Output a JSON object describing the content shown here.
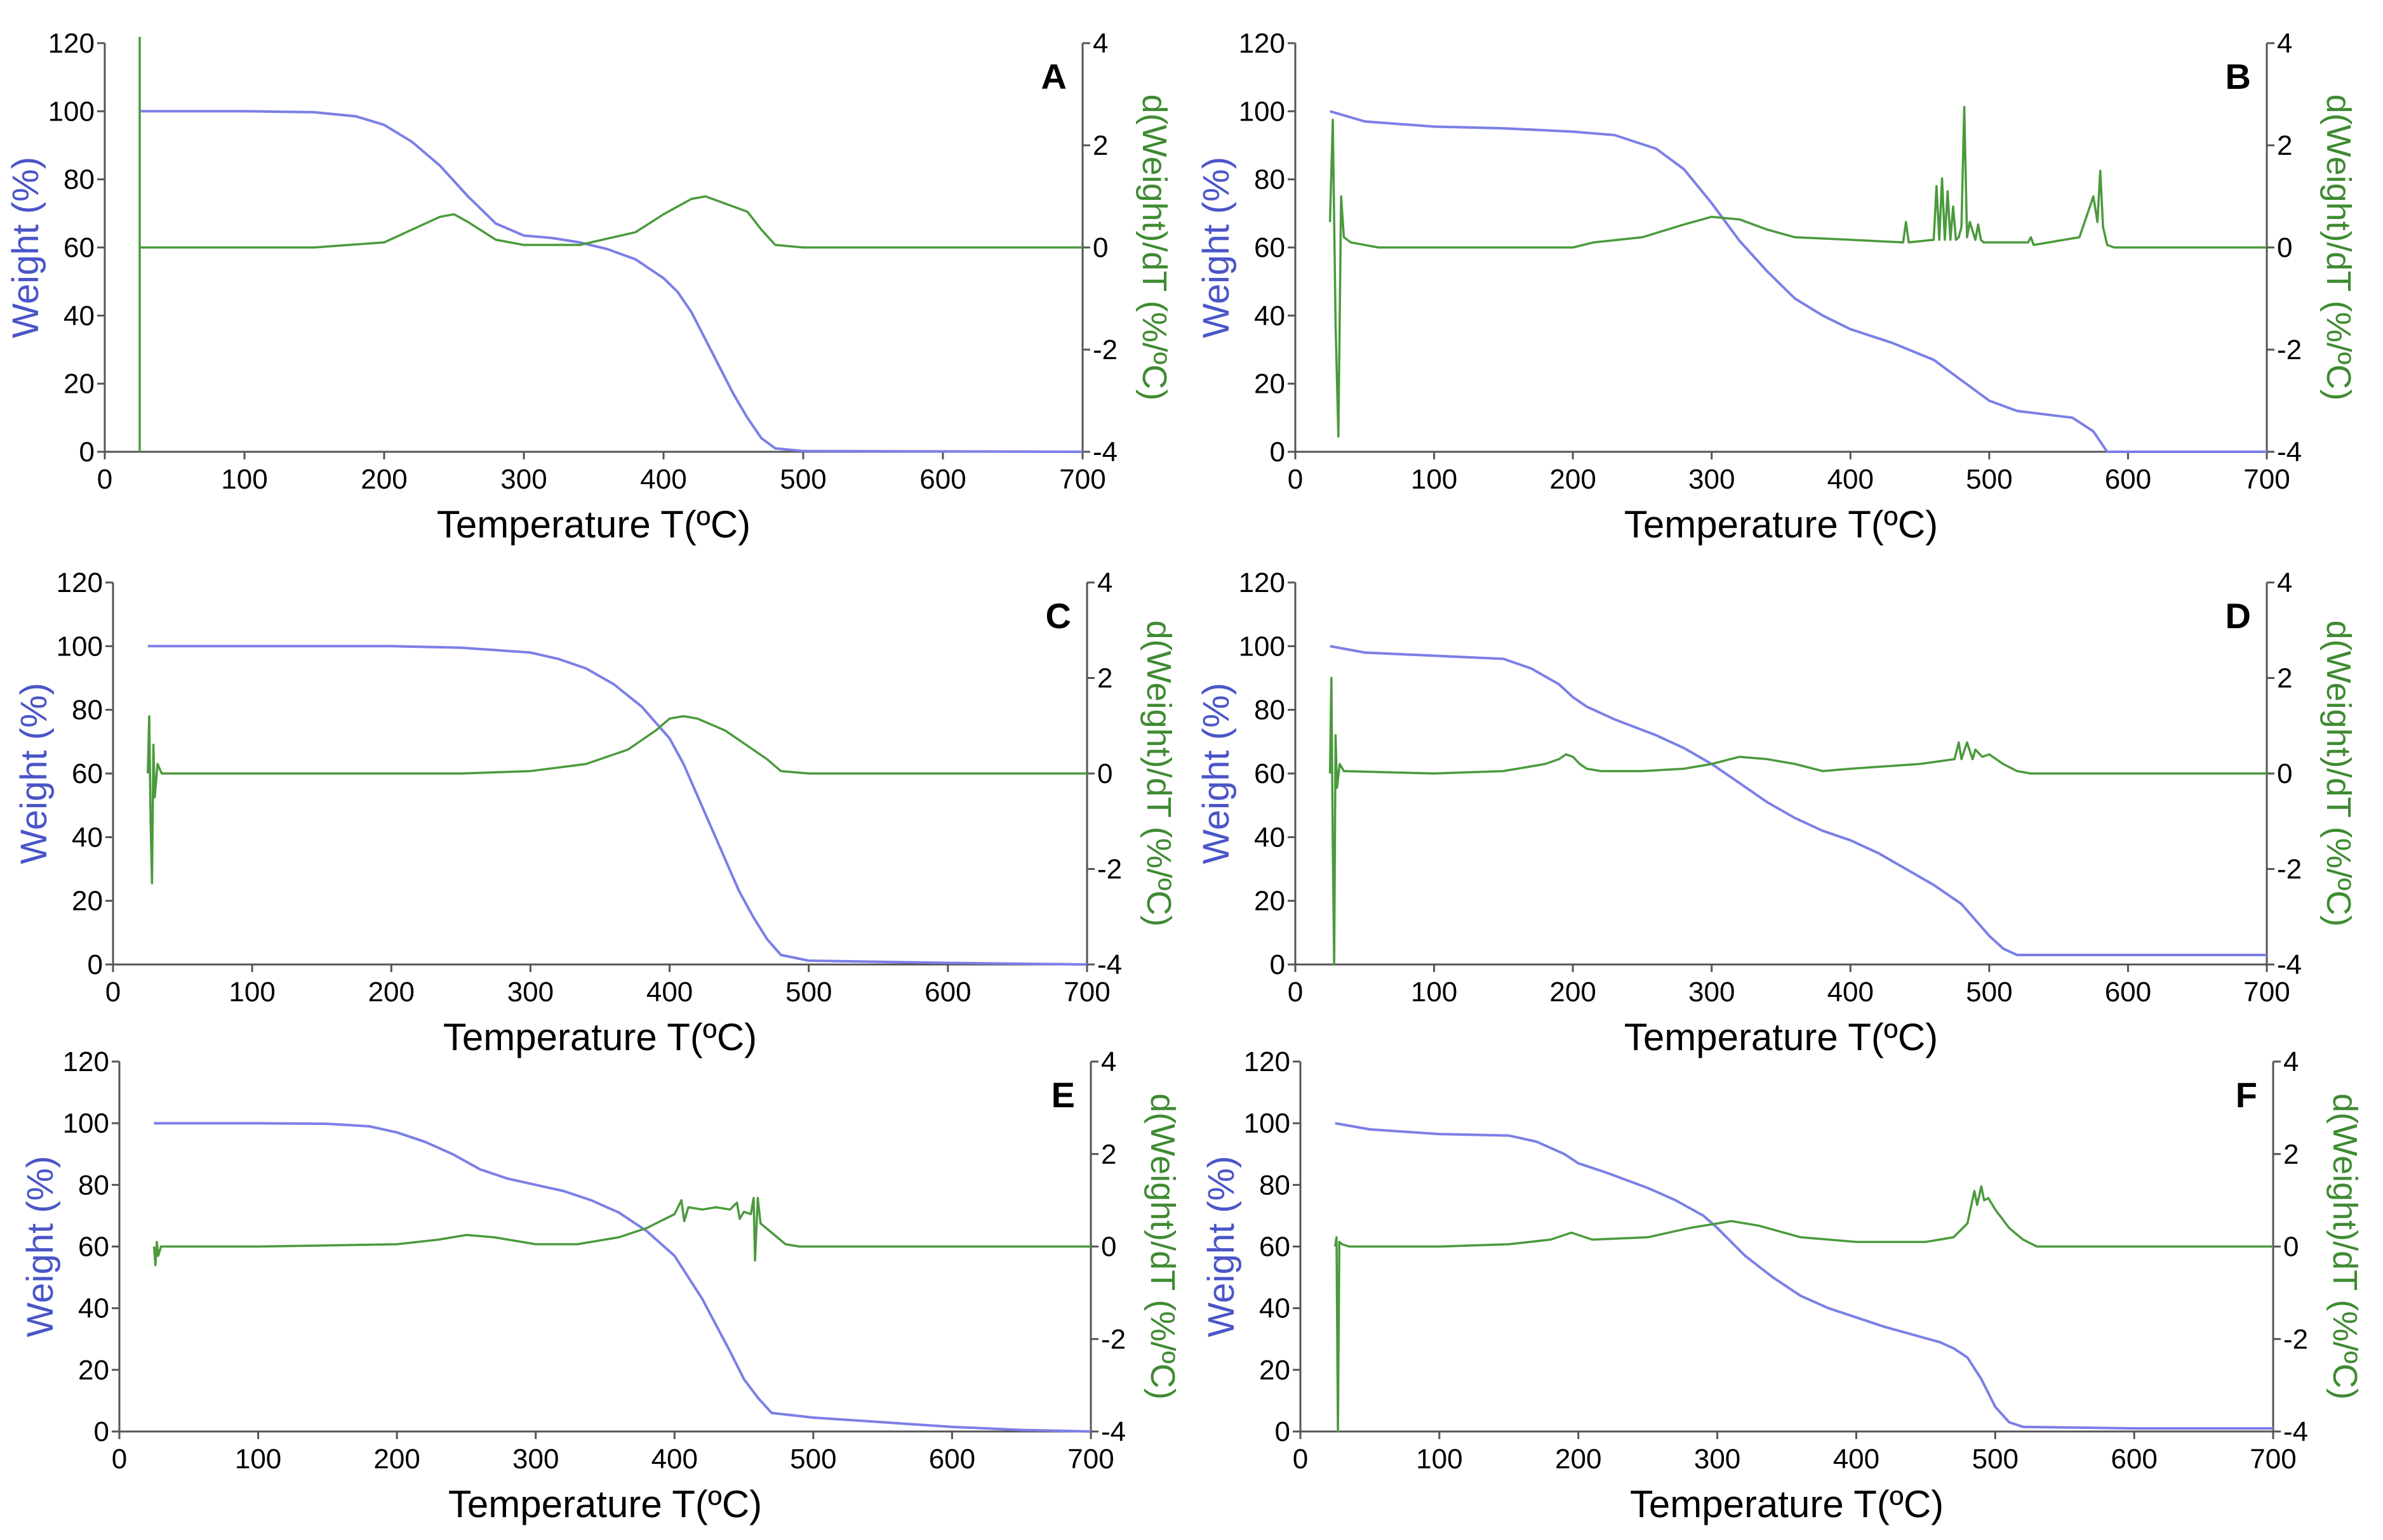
{
  "colors": {
    "weight": "#7b7fe6",
    "derivative": "#4a9a3c",
    "axis": "#555555",
    "weight_label": "#4a55c7",
    "derivative_label": "#3f8a32"
  },
  "chart_data": [
    {
      "type": "line",
      "panel": "A",
      "xlabel": "Temperature T(ºC)",
      "ylabel_left": "Weight (%)",
      "ylabel_right": "d(Weight)/dT (%/ºC)",
      "xlim": [
        0,
        700
      ],
      "ylim_left": [
        0,
        120
      ],
      "ylim_right": [
        -4,
        4
      ],
      "x_ticks": [
        0,
        100,
        200,
        300,
        400,
        500,
        600,
        700
      ],
      "y_left_ticks": [
        0,
        20,
        40,
        60,
        80,
        100,
        120
      ],
      "y_right_ticks": [
        -4,
        -2,
        0,
        2,
        4
      ],
      "series": [
        {
          "name": "Weight",
          "axis": "left",
          "x": [
            25,
            100,
            150,
            180,
            200,
            220,
            240,
            260,
            280,
            300,
            320,
            340,
            360,
            380,
            400,
            410,
            420,
            430,
            440,
            450,
            460,
            470,
            480,
            500,
            700
          ],
          "y": [
            100,
            100,
            99.7,
            98.5,
            96,
            91,
            84,
            75,
            67,
            63.5,
            62.8,
            61.5,
            59.5,
            56.5,
            51,
            47,
            41,
            33,
            25,
            17,
            10,
            4,
            1,
            0.2,
            0
          ]
        },
        {
          "name": "d(Weight)/dT",
          "axis": "right",
          "x": [
            25,
            150,
            200,
            220,
            240,
            250,
            260,
            280,
            300,
            340,
            380,
            400,
            420,
            430,
            440,
            460,
            470,
            480,
            500,
            700
          ],
          "y": [
            0,
            0,
            0.1,
            0.35,
            0.6,
            0.65,
            0.5,
            0.15,
            0.05,
            0.05,
            0.3,
            0.65,
            0.95,
            1.0,
            0.9,
            0.7,
            0.35,
            0.05,
            0,
            0
          ]
        }
      ]
    },
    {
      "type": "line",
      "panel": "B",
      "xlabel": "Temperature T(ºC)",
      "ylabel_left": "Weight (%)",
      "ylabel_right": "d(Weight)/dT (%/ºC)",
      "xlim": [
        0,
        700
      ],
      "ylim_left": [
        0,
        120
      ],
      "ylim_right": [
        -4,
        4
      ],
      "x_ticks": [
        0,
        100,
        200,
        300,
        400,
        500,
        600,
        700
      ],
      "y_left_ticks": [
        0,
        20,
        40,
        60,
        80,
        100,
        120
      ],
      "y_right_ticks": [
        -4,
        -2,
        0,
        2,
        4
      ],
      "series": [
        {
          "name": "Weight",
          "axis": "left",
          "x": [
            25,
            50,
            100,
            150,
            200,
            230,
            260,
            280,
            300,
            320,
            340,
            360,
            380,
            400,
            430,
            460,
            480,
            500,
            520,
            560,
            575,
            585,
            700
          ],
          "y": [
            100,
            97,
            95.5,
            95,
            94,
            93,
            89,
            83,
            73,
            62,
            53,
            45,
            40,
            36,
            32,
            27,
            21,
            15,
            12,
            10,
            6,
            0,
            0
          ]
        },
        {
          "name": "d(Weight)/dT",
          "axis": "right",
          "x": [
            25,
            27,
            29,
            31,
            33,
            35,
            40,
            60,
            200,
            215,
            250,
            280,
            300,
            320,
            340,
            360,
            400,
            438,
            440,
            442,
            460,
            462,
            464,
            466,
            468,
            470,
            472,
            474,
            476,
            478,
            480,
            482,
            484,
            486,
            490,
            492,
            494,
            496,
            500,
            528,
            530,
            532,
            565,
            570,
            575,
            578,
            580,
            582,
            585,
            590,
            700
          ],
          "y": [
            0.5,
            2.5,
            -1.5,
            -3.7,
            1,
            0.2,
            0.1,
            0,
            0,
            0.1,
            0.2,
            0.45,
            0.6,
            0.55,
            0.35,
            0.2,
            0.15,
            0.1,
            0.5,
            0.1,
            0.15,
            1.2,
            0.15,
            1.35,
            0.15,
            1.1,
            0.15,
            0.8,
            0.15,
            0.2,
            0.4,
            2.75,
            0.2,
            0.5,
            0.15,
            0.45,
            0.15,
            0.1,
            0.1,
            0.1,
            0.2,
            0.05,
            0.2,
            0.6,
            1.0,
            0.5,
            1.5,
            0.4,
            0.05,
            0,
            0
          ]
        }
      ]
    },
    {
      "type": "line",
      "panel": "C",
      "xlabel": "Temperature T(ºC)",
      "ylabel_left": "Weight (%)",
      "ylabel_right": "d(Weight)/dT (%/ºC)",
      "xlim": [
        0,
        700
      ],
      "ylim_left": [
        0,
        120
      ],
      "ylim_right": [
        -4,
        4
      ],
      "x_ticks": [
        0,
        100,
        200,
        300,
        400,
        500,
        600,
        700
      ],
      "y_left_ticks": [
        0,
        20,
        40,
        60,
        80,
        100,
        120
      ],
      "y_right_ticks": [
        -4,
        -2,
        0,
        2,
        4
      ],
      "series": [
        {
          "name": "Weight",
          "axis": "left",
          "x": [
            25,
            100,
            200,
            250,
            300,
            320,
            340,
            360,
            380,
            400,
            410,
            420,
            430,
            440,
            450,
            460,
            470,
            480,
            500,
            600,
            700
          ],
          "y": [
            100,
            100,
            100,
            99.5,
            98,
            96,
            93,
            88,
            81,
            71,
            63,
            53,
            43,
            33,
            23,
            15,
            8,
            3,
            1.2,
            0.5,
            0
          ]
        },
        {
          "name": "d(Weight)/dT",
          "axis": "right",
          "x": [
            25,
            26,
            27,
            28,
            29,
            30,
            32,
            35,
            100,
            250,
            300,
            340,
            370,
            390,
            400,
            410,
            420,
            440,
            460,
            470,
            480,
            500,
            700
          ],
          "y": [
            0,
            1.2,
            -1.0,
            -2.3,
            0.6,
            -0.5,
            0.2,
            0,
            0,
            0,
            0.05,
            0.2,
            0.5,
            0.9,
            1.15,
            1.2,
            1.15,
            0.9,
            0.5,
            0.3,
            0.05,
            0,
            0
          ]
        }
      ]
    },
    {
      "type": "line",
      "panel": "D",
      "xlabel": "Temperature T(ºC)",
      "ylabel_left": "Weight (%)",
      "ylabel_right": "d(Weight)/dT (%/ºC)",
      "xlim": [
        0,
        700
      ],
      "ylim_left": [
        0,
        120
      ],
      "ylim_right": [
        -4,
        4
      ],
      "x_ticks": [
        0,
        100,
        200,
        300,
        400,
        500,
        600,
        700
      ],
      "y_left_ticks": [
        0,
        20,
        40,
        60,
        80,
        100,
        120
      ],
      "y_right_ticks": [
        -4,
        -2,
        0,
        2,
        4
      ],
      "series": [
        {
          "name": "Weight",
          "axis": "left",
          "x": [
            25,
            50,
            100,
            150,
            170,
            190,
            200,
            210,
            230,
            260,
            280,
            300,
            320,
            340,
            360,
            380,
            400,
            420,
            440,
            460,
            480,
            490,
            500,
            510,
            520,
            600,
            700
          ],
          "y": [
            100,
            98,
            97,
            96,
            93,
            88,
            84,
            81,
            77,
            72,
            68,
            63,
            57,
            51,
            46,
            42,
            39,
            35,
            30,
            25,
            19,
            14,
            9,
            5,
            3,
            3,
            3
          ]
        },
        {
          "name": "d(Weight)/dT",
          "axis": "right",
          "x": [
            25,
            26,
            27,
            28,
            29,
            30,
            32,
            35,
            100,
            150,
            180,
            190,
            195,
            200,
            205,
            210,
            220,
            250,
            280,
            300,
            320,
            340,
            360,
            380,
            400,
            450,
            475,
            478,
            480,
            484,
            488,
            490,
            495,
            500,
            505,
            510,
            520,
            530,
            700
          ],
          "y": [
            0,
            2,
            -1.5,
            -4,
            0.8,
            -0.3,
            0.2,
            0.05,
            0,
            0.05,
            0.2,
            0.3,
            0.4,
            0.35,
            0.2,
            0.1,
            0.05,
            0.05,
            0.1,
            0.2,
            0.35,
            0.3,
            0.2,
            0.05,
            0.1,
            0.2,
            0.3,
            0.65,
            0.3,
            0.65,
            0.3,
            0.5,
            0.35,
            0.4,
            0.3,
            0.2,
            0.05,
            0,
            0
          ]
        }
      ]
    },
    {
      "type": "line",
      "panel": "E",
      "xlabel": "Temperature T(ºC)",
      "ylabel_left": "Weight (%)",
      "ylabel_right": "d(Weight)/dT (%/ºC)",
      "xlim": [
        0,
        700
      ],
      "ylim_left": [
        0,
        120
      ],
      "ylim_right": [
        -4,
        4
      ],
      "x_ticks": [
        0,
        100,
        200,
        300,
        400,
        500,
        600,
        700
      ],
      "y_left_ticks": [
        0,
        20,
        40,
        60,
        80,
        100,
        120
      ],
      "y_right_ticks": [
        -4,
        -2,
        0,
        2,
        4
      ],
      "series": [
        {
          "name": "Weight",
          "axis": "left",
          "x": [
            25,
            100,
            150,
            180,
            200,
            220,
            240,
            260,
            280,
            300,
            320,
            340,
            360,
            380,
            400,
            420,
            440,
            450,
            460,
            470,
            500,
            550,
            600,
            650,
            700
          ],
          "y": [
            100,
            100,
            99.8,
            99,
            97,
            94,
            90,
            85,
            82,
            80,
            78,
            75,
            71,
            65,
            57,
            43,
            26,
            17,
            11,
            6,
            4.5,
            3,
            1.5,
            0.5,
            0
          ]
        },
        {
          "name": "d(Weight)/dT",
          "axis": "right",
          "x": [
            25,
            26,
            27,
            28,
            30,
            100,
            200,
            230,
            250,
            270,
            300,
            330,
            360,
            380,
            400,
            405,
            407,
            410,
            420,
            430,
            440,
            445,
            447,
            450,
            455,
            457,
            458,
            460,
            462,
            470,
            480,
            490,
            700
          ],
          "y": [
            0,
            -0.4,
            0.1,
            -0.2,
            0,
            0,
            0.05,
            0.15,
            0.25,
            0.2,
            0.05,
            0.05,
            0.2,
            0.4,
            0.7,
            1.0,
            0.55,
            0.85,
            0.8,
            0.85,
            0.8,
            0.95,
            0.6,
            0.75,
            0.7,
            1.05,
            -0.3,
            1.05,
            0.5,
            0.3,
            0.05,
            0,
            0
          ]
        }
      ]
    },
    {
      "type": "line",
      "panel": "F",
      "xlabel": "Temperature T(ºC)",
      "ylabel_left": "Weight (%)",
      "ylabel_right": "d(Weight)/dT (%/ºC)",
      "xlim": [
        0,
        700
      ],
      "ylim_left": [
        0,
        120
      ],
      "ylim_right": [
        -4,
        4
      ],
      "x_ticks": [
        0,
        100,
        200,
        300,
        400,
        500,
        600,
        700
      ],
      "y_left_ticks": [
        0,
        20,
        40,
        60,
        80,
        100,
        120
      ],
      "y_right_ticks": [
        -4,
        -2,
        0,
        2,
        4
      ],
      "series": [
        {
          "name": "Weight",
          "axis": "left",
          "x": [
            25,
            50,
            100,
            150,
            170,
            190,
            200,
            220,
            250,
            270,
            290,
            300,
            320,
            340,
            360,
            380,
            400,
            420,
            440,
            460,
            470,
            480,
            490,
            500,
            510,
            520,
            600,
            700
          ],
          "y": [
            100,
            98,
            96.5,
            96,
            94,
            90,
            87,
            84,
            79,
            75,
            70,
            66,
            57,
            50,
            44,
            40,
            37,
            34,
            31.5,
            29,
            27,
            24,
            17,
            8,
            3,
            1.5,
            1,
            1
          ]
        },
        {
          "name": "d(Weight)/dT",
          "axis": "right",
          "x": [
            25,
            26,
            27,
            28,
            30,
            35,
            100,
            150,
            180,
            195,
            210,
            250,
            280,
            300,
            310,
            330,
            360,
            400,
            450,
            470,
            480,
            485,
            487,
            490,
            492,
            495,
            500,
            510,
            520,
            530,
            700
          ],
          "y": [
            0,
            0.2,
            -4,
            0.1,
            0.05,
            0,
            0,
            0.05,
            0.15,
            0.3,
            0.15,
            0.2,
            0.4,
            0.5,
            0.55,
            0.45,
            0.2,
            0.1,
            0.1,
            0.2,
            0.5,
            1.2,
            0.9,
            1.3,
            1.0,
            1.05,
            0.8,
            0.4,
            0.15,
            0,
            0
          ]
        }
      ]
    }
  ]
}
